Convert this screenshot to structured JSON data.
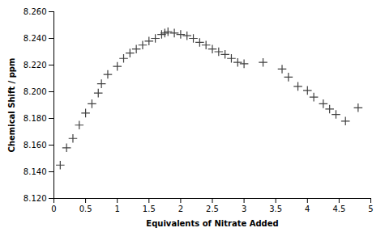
{
  "chart_data": {
    "type": "scatter",
    "x": [
      0.1,
      0.2,
      0.3,
      0.4,
      0.5,
      0.6,
      0.7,
      0.75,
      0.85,
      1.0,
      1.1,
      1.2,
      1.3,
      1.4,
      1.5,
      1.6,
      1.7,
      1.75,
      1.8,
      1.9,
      2.0,
      2.1,
      2.2,
      2.3,
      2.4,
      2.5,
      2.6,
      2.7,
      2.8,
      2.9,
      3.0,
      3.3,
      3.6,
      3.7,
      3.85,
      4.0,
      4.1,
      4.25,
      4.35,
      4.45,
      4.6,
      4.8
    ],
    "values": [
      8.145,
      8.158,
      8.165,
      8.175,
      8.184,
      8.191,
      8.199,
      8.206,
      8.213,
      8.219,
      8.225,
      8.229,
      8.232,
      8.235,
      8.238,
      8.24,
      8.243,
      8.244,
      8.245,
      8.244,
      8.243,
      8.242,
      8.24,
      8.237,
      8.235,
      8.232,
      8.23,
      8.228,
      8.225,
      8.222,
      8.221,
      8.222,
      8.217,
      8.211,
      8.204,
      8.201,
      8.196,
      8.191,
      8.187,
      8.183,
      8.178,
      8.188
    ],
    "xlabel": "Equivalents of Nitrate Added",
    "ylabel": "Chemical Shift / ppm",
    "xlim": [
      0,
      5
    ],
    "ylim": [
      8.12,
      8.26
    ],
    "xticks": [
      0,
      0.5,
      1,
      1.5,
      2,
      2.5,
      3,
      3.5,
      4,
      4.5,
      5
    ],
    "yticks": [
      {
        "value": 8.12,
        "label": "8.120"
      },
      {
        "value": 8.14,
        "label": "8.140"
      },
      {
        "value": 8.16,
        "label": "8.160"
      },
      {
        "value": 8.18,
        "label": "8.180"
      },
      {
        "value": 8.2,
        "label": "8.200"
      },
      {
        "value": 8.22,
        "label": "8.220"
      },
      {
        "value": 8.24,
        "label": "8.240"
      },
      {
        "value": 8.26,
        "label": "8.260"
      }
    ],
    "marker": "plus",
    "color": "#404040",
    "grid": false
  }
}
